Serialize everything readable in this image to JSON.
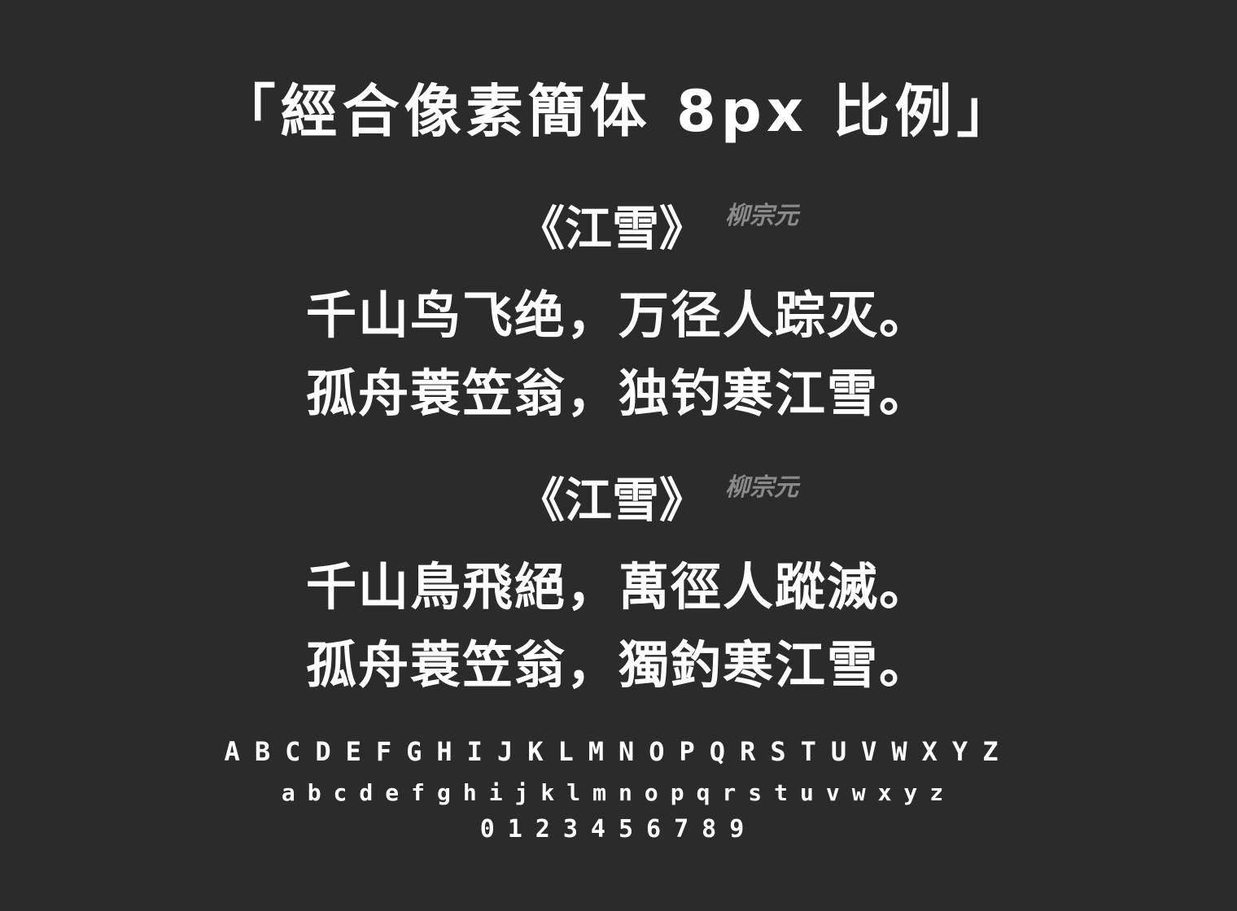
{
  "title": "「經合像素簡体 8px 比例」",
  "poems": [
    {
      "heading": "《江雪》",
      "author": "柳宗元",
      "lines": [
        "千山鸟飞绝，万径人踪灭。",
        "孤舟蓑笠翁，独钓寒江雪。"
      ]
    },
    {
      "heading": "《江雪》",
      "author": "柳宗元",
      "lines": [
        "千山鳥飛絕，萬徑人蹤滅。",
        "孤舟蓑笠翁，獨釣寒江雪。"
      ]
    }
  ],
  "alphabet": {
    "uppercase": "ABCDEFGHIJKLMNOPQRSTUVWXYZ",
    "lowercase": "abcdefghijklmnopqrstuvwxyz",
    "digits": "0123456789"
  },
  "colors": {
    "background": "#2b2b2b",
    "text": "#ffffff",
    "author": "#8a8a8a"
  }
}
